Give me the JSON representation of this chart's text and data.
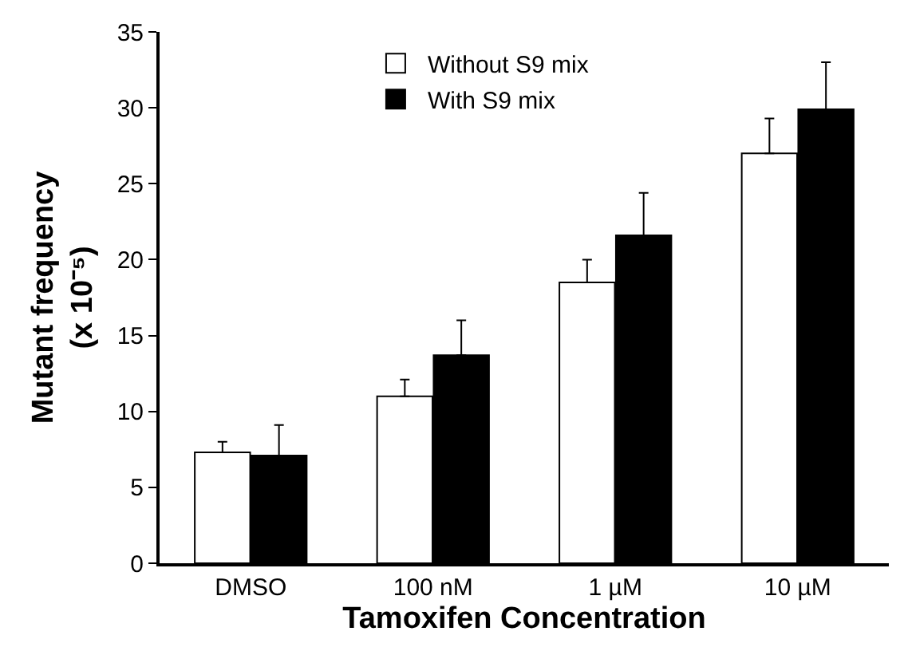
{
  "chart_data": {
    "type": "bar",
    "xlabel": "Tamoxifen Concentration",
    "ylabel": "Mutant frequency\n(x 10⁻⁵)",
    "categories": [
      "DMSO",
      "100 nM",
      "1 µM",
      "10 µM"
    ],
    "series": [
      {
        "name": "Without S9 mix",
        "color": "#ffffff",
        "values": [
          7.3,
          11.0,
          18.5,
          27.0
        ],
        "errors": [
          [
            7.3,
            8.0
          ],
          [
            11.0,
            12.1
          ],
          [
            18.5,
            20.0
          ],
          [
            27.0,
            29.3
          ]
        ]
      },
      {
        "name": "With S9 mix",
        "color": "#000000",
        "values": [
          7.1,
          13.7,
          21.6,
          29.9
        ],
        "errors": [
          [
            7.1,
            9.1
          ],
          [
            13.7,
            16.0
          ],
          [
            21.6,
            24.4
          ],
          [
            29.9,
            33.0
          ]
        ]
      }
    ],
    "ylim": [
      0,
      35
    ],
    "yticks": [
      0,
      5,
      10,
      15,
      20,
      25,
      30,
      35
    ],
    "grid": false,
    "legend": "top center"
  }
}
